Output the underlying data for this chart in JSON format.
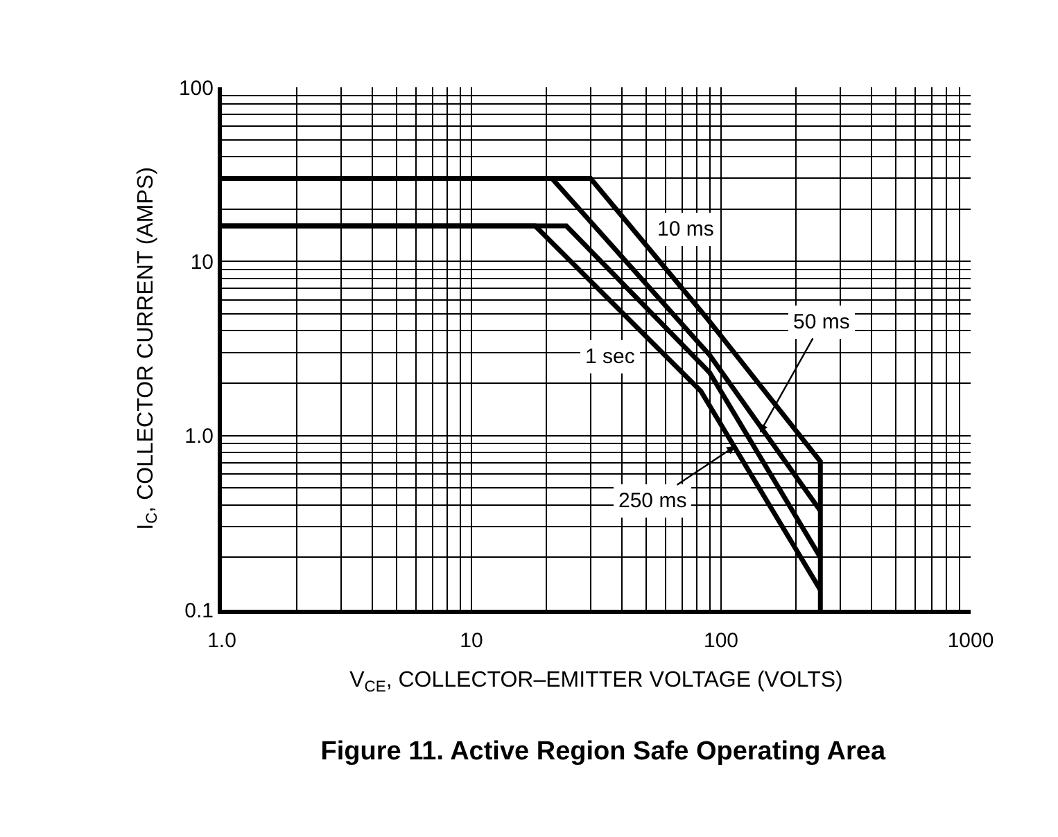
{
  "chart_data": {
    "type": "line",
    "title": "Figure 11. Active Region Safe Operating Area",
    "xlabel": "V$_{CE}$, COLLECTOR–EMITTER VOLTAGE (VOLTS)",
    "ylabel": "I$_{C}$, COLLECTOR CURRENT (AMPS)",
    "log": "xy",
    "xlim": [
      1,
      1000
    ],
    "ylim": [
      0.1,
      100
    ],
    "xticks": [
      {
        "value": 1,
        "label": "1.0"
      },
      10,
      100,
      1000
    ],
    "yticks": [
      0.1,
      {
        "value": 1,
        "label": "1.0"
      },
      10,
      100
    ],
    "grid": true,
    "marker": "none",
    "line_style": "solid",
    "series": [
      {
        "color": "#000000",
        "x": [
          1,
          30,
          88,
          250,
          250
        ],
        "values": [
          30,
          30,
          4.7,
          0.71,
          0.1
        ]
      },
      {
        "color": "#000000",
        "x": [
          1,
          21,
          90,
          250
        ],
        "values": [
          30,
          30,
          2.9,
          0.37
        ]
      },
      {
        "color": "#000000",
        "x": [
          1,
          24,
          90,
          250
        ],
        "values": [
          16,
          16,
          2.3,
          0.2
        ]
      },
      {
        "color": "#000000",
        "x": [
          1,
          18,
          83,
          250
        ],
        "values": [
          16,
          16,
          1.8,
          0.13
        ]
      }
    ],
    "annotations": [
      "10 ms",
      {
        "text": "50 ms",
        "x": 143,
        "y": 1.04
      },
      "1 sec",
      {
        "text": "250 ms",
        "x": 114,
        "y": 0.87
      }
    ]
  }
}
